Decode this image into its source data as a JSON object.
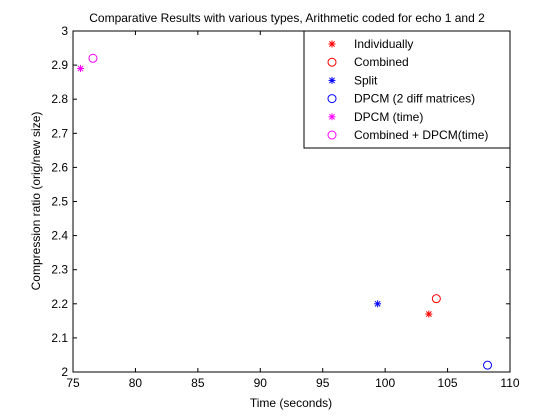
{
  "chart_data": {
    "type": "scatter",
    "title": "Comparative Results with various types, Arithmetic coded for echo 1 and 2",
    "xlabel": "Time (seconds)",
    "ylabel": "Compression ratio (orig/new size)",
    "xlim": [
      75,
      110
    ],
    "ylim": [
      2,
      3
    ],
    "xticks": [
      75,
      80,
      85,
      90,
      95,
      100,
      105,
      110
    ],
    "yticks": [
      2,
      2.1,
      2.2,
      2.3,
      2.4,
      2.5,
      2.6,
      2.7,
      2.8,
      2.9,
      3
    ],
    "xtick_labels": [
      "75",
      "80",
      "85",
      "90",
      "95",
      "100",
      "105",
      "110"
    ],
    "ytick_labels": [
      "2",
      "2.1",
      "2.2",
      "2.3",
      "2.4",
      "2.5",
      "2.6",
      "2.7",
      "2.8",
      "2.9",
      "3"
    ],
    "grid": false,
    "legend_position": "top-right",
    "series": [
      {
        "name": "Individually",
        "marker": "star",
        "color": "#ff0000",
        "points": [
          {
            "x": 103.5,
            "y": 2.17
          }
        ]
      },
      {
        "name": "Combined",
        "marker": "circle",
        "color": "#ff0000",
        "points": [
          {
            "x": 104.1,
            "y": 2.215
          }
        ]
      },
      {
        "name": "Split",
        "marker": "star",
        "color": "#0000ff",
        "points": [
          {
            "x": 99.4,
            "y": 2.2
          }
        ]
      },
      {
        "name": "DPCM (2 diff matrices)",
        "marker": "circle",
        "color": "#0000ff",
        "points": [
          {
            "x": 108.2,
            "y": 2.02
          }
        ]
      },
      {
        "name": "DPCM (time)",
        "marker": "star",
        "color": "#ff00ff",
        "points": [
          {
            "x": 75.6,
            "y": 2.89
          }
        ]
      },
      {
        "name": "Combined + DPCM(time)",
        "marker": "circle",
        "color": "#ff00ff",
        "points": [
          {
            "x": 76.6,
            "y": 2.92
          }
        ]
      }
    ]
  }
}
